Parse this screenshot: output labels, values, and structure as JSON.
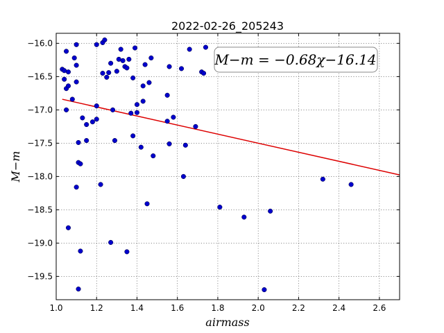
{
  "chart_data": {
    "type": "scatter",
    "title": "2022-02-26_205243",
    "xlabel": "airmass",
    "ylabel": "M−m",
    "xlim": [
      1.0,
      2.7
    ],
    "ylim": [
      -19.85,
      -15.85
    ],
    "y_inverted": true,
    "grid": true,
    "x_ticks": [
      1.0,
      1.2,
      1.4,
      1.6,
      1.8,
      2.0,
      2.2,
      2.4,
      2.6
    ],
    "x_tick_labels": [
      "1.0",
      "1.2",
      "1.4",
      "1.6",
      "1.8",
      "2.0",
      "2.2",
      "2.4",
      "2.6"
    ],
    "y_ticks": [
      -16.0,
      -16.5,
      -17.0,
      -17.5,
      -18.0,
      -18.5,
      -19.0,
      -19.5
    ],
    "y_tick_labels": [
      "−16.0",
      "−16.5",
      "−17.0",
      "−17.5",
      "−18.0",
      "−18.5",
      "−19.0",
      "−19.5"
    ],
    "point_color": "#0000cc",
    "fit_color": "#dd0000",
    "fit": {
      "label": "M−m = −0.68χ−16.14",
      "slope": -0.68,
      "intercept": -16.14,
      "x_range": [
        1.03,
        2.7
      ]
    },
    "points": [
      [
        1.03,
        -16.39
      ],
      [
        1.04,
        -16.54
      ],
      [
        1.04,
        -16.41
      ],
      [
        1.05,
        -16.12
      ],
      [
        1.05,
        -16.68
      ],
      [
        1.05,
        -17.0
      ],
      [
        1.06,
        -16.64
      ],
      [
        1.06,
        -16.43
      ],
      [
        1.06,
        -18.77
      ],
      [
        1.08,
        -16.84
      ],
      [
        1.09,
        -16.22
      ],
      [
        1.1,
        -16.02
      ],
      [
        1.1,
        -16.33
      ],
      [
        1.1,
        -16.58
      ],
      [
        1.1,
        -18.16
      ],
      [
        1.11,
        -17.79
      ],
      [
        1.11,
        -17.49
      ],
      [
        1.11,
        -19.69
      ],
      [
        1.12,
        -17.81
      ],
      [
        1.12,
        -19.12
      ],
      [
        1.13,
        -17.12
      ],
      [
        1.15,
        -17.22
      ],
      [
        1.15,
        -17.46
      ],
      [
        1.18,
        -17.18
      ],
      [
        1.2,
        -16.02
      ],
      [
        1.2,
        -16.94
      ],
      [
        1.2,
        -17.14
      ],
      [
        1.22,
        -18.12
      ],
      [
        1.23,
        -15.99
      ],
      [
        1.23,
        -16.45
      ],
      [
        1.24,
        -15.95
      ],
      [
        1.25,
        -16.51
      ],
      [
        1.26,
        -16.44
      ],
      [
        1.27,
        -16.3
      ],
      [
        1.27,
        -18.99
      ],
      [
        1.28,
        -17.0
      ],
      [
        1.29,
        -17.46
      ],
      [
        1.3,
        -16.42
      ],
      [
        1.31,
        -16.24
      ],
      [
        1.32,
        -16.09
      ],
      [
        1.33,
        -16.26
      ],
      [
        1.34,
        -16.35
      ],
      [
        1.35,
        -16.37
      ],
      [
        1.35,
        -19.13
      ],
      [
        1.36,
        -16.24
      ],
      [
        1.37,
        -17.05
      ],
      [
        1.38,
        -16.52
      ],
      [
        1.38,
        -17.39
      ],
      [
        1.39,
        -16.07
      ],
      [
        1.4,
        -17.04
      ],
      [
        1.4,
        -16.92
      ],
      [
        1.42,
        -17.56
      ],
      [
        1.43,
        -16.87
      ],
      [
        1.43,
        -16.64
      ],
      [
        1.44,
        -16.32
      ],
      [
        1.45,
        -18.41
      ],
      [
        1.46,
        -16.59
      ],
      [
        1.47,
        -16.22
      ],
      [
        1.48,
        -17.69
      ],
      [
        1.55,
        -17.17
      ],
      [
        1.55,
        -16.78
      ],
      [
        1.56,
        -16.35
      ],
      [
        1.56,
        -17.51
      ],
      [
        1.58,
        -17.11
      ],
      [
        1.62,
        -16.38
      ],
      [
        1.63,
        -18.0
      ],
      [
        1.64,
        -17.53
      ],
      [
        1.66,
        -16.09
      ],
      [
        1.69,
        -17.25
      ],
      [
        1.72,
        -16.43
      ],
      [
        1.73,
        -16.45
      ],
      [
        1.74,
        -16.06
      ],
      [
        1.81,
        -18.46
      ],
      [
        1.93,
        -18.61
      ],
      [
        2.03,
        -19.7
      ],
      [
        2.06,
        -18.52
      ],
      [
        2.32,
        -18.04
      ],
      [
        2.46,
        -18.12
      ]
    ]
  }
}
